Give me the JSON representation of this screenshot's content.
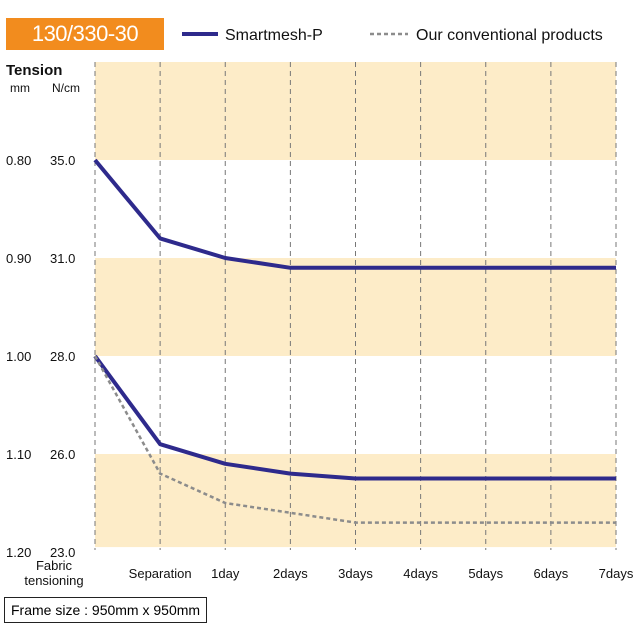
{
  "chart_data": {
    "type": "line",
    "badge": "130/330-30",
    "title": "",
    "y_header": "Tension",
    "y_units": [
      "mm",
      "N/cm"
    ],
    "categories": [
      "Fabric\ntensioning",
      "Separation",
      "1day",
      "2days",
      "3days",
      "4days",
      "5days",
      "6days",
      "7days"
    ],
    "y_ticks_mm": [
      "0.80",
      "0.90",
      "1.00",
      "1.10",
      "1.20"
    ],
    "y_ticks_ncm": [
      "35.0",
      "31.0",
      "28.0",
      "26.0",
      "23.0"
    ],
    "y_tick_index": [
      0,
      1,
      2,
      3,
      4
    ],
    "ylim_index": [
      -1,
      4
    ],
    "series": [
      {
        "name": "Smartmesh-P",
        "style": "solid",
        "color": "#2e2a8c",
        "values": [
          0.0,
          0.8,
          1.0,
          1.1,
          1.1,
          1.1,
          1.1,
          1.1,
          1.1
        ]
      },
      {
        "name": "Smartmesh-P",
        "style": "solid",
        "color": "#2e2a8c",
        "values": [
          2.0,
          2.9,
          3.1,
          3.2,
          3.25,
          3.25,
          3.25,
          3.25,
          3.25
        ]
      },
      {
        "name": "Our conventional products",
        "style": "dashed",
        "color": "#8c8c8c",
        "values": [
          2.0,
          3.2,
          3.5,
          3.6,
          3.7,
          3.7,
          3.7,
          3.7,
          3.7
        ]
      }
    ],
    "legend": [
      {
        "name": "Smartmesh-P",
        "style": "solid",
        "color": "#2e2a8c"
      },
      {
        "name": "Our conventional products",
        "style": "dashed",
        "color": "#8c8c8c"
      }
    ],
    "band_color": "#fdecc8",
    "footer": "Frame size : 950mm x 950mm"
  }
}
